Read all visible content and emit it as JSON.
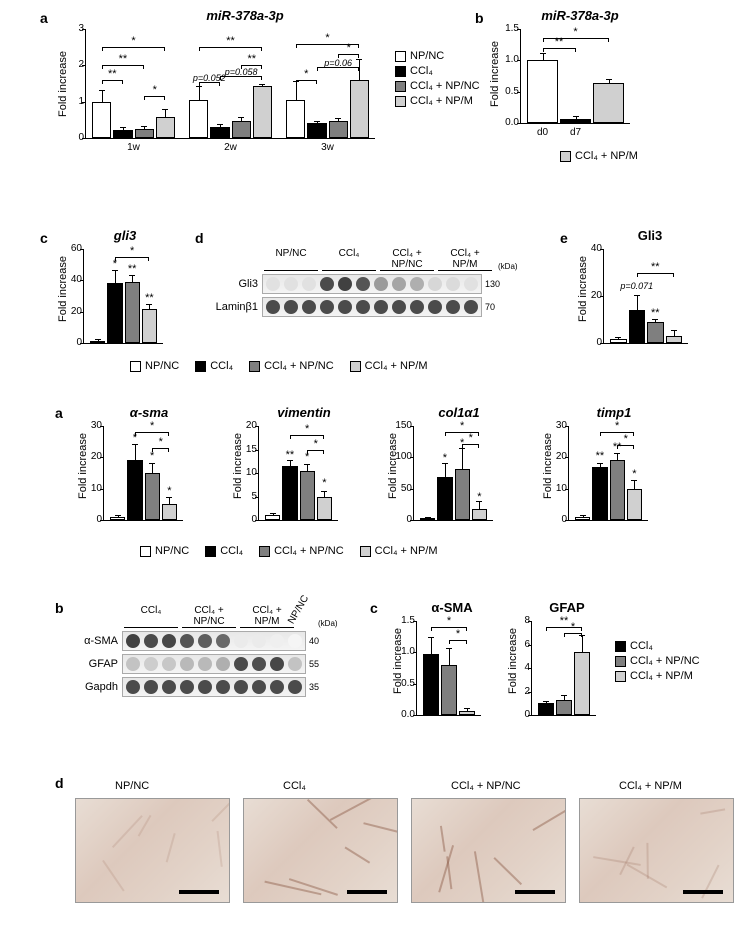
{
  "colors": {
    "npnc": "#ffffff",
    "ccl4": "#000000",
    "ccl4_npnc": "#7f7f7f",
    "ccl4_npm": "#d0d0d0",
    "border": "#000000",
    "bg": "#ffffff"
  },
  "legends": {
    "full": [
      {
        "key": "npnc",
        "label": "NP/NC"
      },
      {
        "key": "ccl4",
        "label": "CCl₄"
      },
      {
        "key": "ccl4_npnc",
        "label": "CCl₄ + NP/NC"
      },
      {
        "key": "ccl4_npm",
        "label": "CCl₄ + NP/M"
      }
    ],
    "panel_b_top": [
      {
        "key": "ccl4_npm",
        "label": "CCl₄ + NP/M"
      }
    ],
    "panel_c_bot": [
      {
        "key": "ccl4",
        "label": "CCl₄"
      },
      {
        "key": "ccl4_npnc",
        "label": "CCl₄ + NP/NC"
      },
      {
        "key": "ccl4_npm",
        "label": "CCl₄ + NP/M"
      }
    ]
  },
  "top": {
    "a": {
      "label": "a",
      "title": "miR-378a-3p",
      "ylabel": "Fold increase",
      "ylim": [
        0,
        3
      ],
      "ytick_step": 1,
      "groups": [
        "1w",
        "2w",
        "3w"
      ],
      "series": [
        "npnc",
        "ccl4",
        "ccl4_npnc",
        "ccl4_npm"
      ],
      "values": [
        [
          1.0,
          0.22,
          0.25,
          0.58
        ],
        [
          1.05,
          0.3,
          0.47,
          1.42
        ],
        [
          1.05,
          0.4,
          0.48,
          1.6
        ]
      ],
      "errors": [
        [
          0.3,
          0.05,
          0.05,
          0.18
        ],
        [
          0.35,
          0.05,
          0.08,
          0.05
        ],
        [
          0.5,
          0.05,
          0.03,
          0.55
        ]
      ],
      "sig": [
        {
          "g": 0,
          "from": 0,
          "to": 3,
          "y": 2.5,
          "t": "*"
        },
        {
          "g": 0,
          "from": 0,
          "to": 2,
          "y": 2.0,
          "t": "**"
        },
        {
          "g": 0,
          "from": 0,
          "to": 1,
          "y": 1.6,
          "t": "**"
        },
        {
          "g": 0,
          "from": 2,
          "to": 3,
          "y": 1.15,
          "t": "*"
        },
        {
          "g": 1,
          "from": 0,
          "to": 3,
          "y": 2.5,
          "t": "**"
        },
        {
          "g": 1,
          "from": 2,
          "to": 3,
          "y": 2.0,
          "t": "**"
        },
        {
          "g": 1,
          "from": 1,
          "to": 3,
          "y": 1.7,
          "t": "p=0.058",
          "p": true
        },
        {
          "g": 1,
          "from": 0,
          "to": 1,
          "y": 1.55,
          "t": "p=0.052",
          "p": true,
          "below": true
        },
        {
          "g": 2,
          "from": 0,
          "to": 3,
          "y": 2.6,
          "t": "*"
        },
        {
          "g": 2,
          "from": 2,
          "to": 3,
          "y": 2.3,
          "t": "*"
        },
        {
          "g": 2,
          "from": 1,
          "to": 3,
          "y": 1.95,
          "t": "p=0.06",
          "p": true
        },
        {
          "g": 2,
          "from": 0,
          "to": 1,
          "y": 1.6,
          "t": "*",
          "below": true
        }
      ]
    },
    "b": {
      "label": "b",
      "title": "miR-378a-3p",
      "ylabel": "Fold increase",
      "ylim": [
        0,
        1.5
      ],
      "ytick_step": 0.5,
      "categories": [
        "d0",
        "d7"
      ],
      "values": [
        1.0,
        0.07,
        0.64
      ],
      "errors": [
        0.1,
        0.02,
        0.04
      ],
      "bar_colors": [
        "npnc",
        "ccl4",
        "ccl4_npm"
      ],
      "sig": [
        {
          "from": 0,
          "to": 2,
          "y": 1.35,
          "t": "*"
        },
        {
          "from": 0,
          "to": 1,
          "y": 1.2,
          "t": "**"
        }
      ]
    },
    "c": {
      "label": "c",
      "title": "gli3",
      "ylabel": "Fold increase",
      "ylim": [
        0,
        60
      ],
      "ytick_step": 20,
      "series": [
        "npnc",
        "ccl4",
        "ccl4_npnc",
        "ccl4_npm"
      ],
      "values": [
        1.5,
        38,
        39,
        22
      ],
      "errors": [
        0.5,
        8,
        4,
        2
      ],
      "sig": [
        {
          "from": 1,
          "to": 3,
          "y": 55,
          "t": "*"
        },
        {
          "star_only": true,
          "at": 1,
          "y": 48,
          "t": "*"
        },
        {
          "star_only": true,
          "at": 2,
          "y": 45,
          "t": "**"
        },
        {
          "star_only": true,
          "at": 3,
          "y": 26,
          "t": "**"
        }
      ]
    },
    "d": {
      "label": "d",
      "lanes": [
        "NP/NC",
        "CCl₄",
        "CCl₄ + NP/NC",
        "CCl₄ + NP/M"
      ],
      "rows": [
        {
          "name": "Gli3",
          "mw": "130",
          "intensity": [
            0.15,
            0.15,
            0.15,
            0.9,
            0.95,
            0.85,
            0.5,
            0.45,
            0.4,
            0.2,
            0.18,
            0.15
          ]
        },
        {
          "name": "Laminβ1",
          "mw": "70",
          "intensity": [
            0.9,
            0.9,
            0.9,
            0.9,
            0.9,
            0.9,
            0.9,
            0.9,
            0.9,
            0.9,
            0.9,
            0.9
          ]
        }
      ],
      "kda_label": "(kDa)"
    },
    "e": {
      "label": "e",
      "title": "Gli3",
      "ylabel": "Fold increase",
      "ylim": [
        0,
        40
      ],
      "ytick_step": 20,
      "series": [
        "npnc",
        "ccl4",
        "ccl4_npnc",
        "ccl4_npm"
      ],
      "values": [
        1.5,
        14,
        9,
        3
      ],
      "errors": [
        0.5,
        6,
        1,
        2
      ],
      "sig": [
        {
          "from": 1,
          "to": 3,
          "y": 30,
          "t": "**"
        },
        {
          "star_only": true,
          "at": 1,
          "y": 22,
          "t": "p=0.071",
          "p": true
        },
        {
          "star_only": true,
          "at": 2,
          "y": 11,
          "t": "**"
        }
      ]
    }
  },
  "mid": {
    "a": {
      "label": "a",
      "ylabel": "Fold increase",
      "charts": [
        {
          "title": "α-sma",
          "ylim": [
            0,
            30
          ],
          "ytick": 10,
          "values": [
            1,
            19,
            15,
            5
          ],
          "errors": [
            0.3,
            5,
            3,
            2
          ],
          "sig": [
            {
              "from": 1,
              "to": 3,
              "y": 28,
              "t": "*"
            },
            {
              "from": 2,
              "to": 3,
              "y": 23,
              "t": "*"
            },
            {
              "star_only": true,
              "at": 1,
              "y": 25,
              "t": "*"
            },
            {
              "star_only": true,
              "at": 2,
              "y": 19,
              "t": "*"
            },
            {
              "star_only": true,
              "at": 3,
              "y": 8,
              "t": "*"
            }
          ]
        },
        {
          "title": "vimentin",
          "ylim": [
            0,
            20
          ],
          "ytick": 5,
          "values": [
            1,
            11.5,
            10.5,
            5
          ],
          "errors": [
            0.2,
            1,
            1.2,
            1
          ],
          "sig": [
            {
              "from": 1,
              "to": 3,
              "y": 18,
              "t": "*"
            },
            {
              "from": 2,
              "to": 3,
              "y": 15,
              "t": "*"
            },
            {
              "star_only": true,
              "at": 1,
              "y": 13,
              "t": "**"
            },
            {
              "star_only": true,
              "at": 2,
              "y": 12.5,
              "t": "*"
            },
            {
              "star_only": true,
              "at": 3,
              "y": 7,
              "t": "*"
            }
          ]
        },
        {
          "title": "col1α1",
          "ylim": [
            0,
            150
          ],
          "ytick": 50,
          "values": [
            2,
            68,
            82,
            18
          ],
          "errors": [
            1,
            22,
            32,
            10
          ],
          "sig": [
            {
              "from": 1,
              "to": 3,
              "y": 140,
              "t": "*"
            },
            {
              "from": 2,
              "to": 3,
              "y": 122,
              "t": "*"
            },
            {
              "star_only": true,
              "at": 1,
              "y": 92,
              "t": "*"
            },
            {
              "star_only": true,
              "at": 2,
              "y": 116,
              "t": "*"
            },
            {
              "star_only": true,
              "at": 3,
              "y": 30,
              "t": "*"
            }
          ]
        },
        {
          "title": "timp1",
          "ylim": [
            0,
            30
          ],
          "ytick": 10,
          "values": [
            1,
            17,
            19,
            10
          ],
          "errors": [
            0.3,
            1,
            2,
            2.5
          ],
          "sig": [
            {
              "from": 1,
              "to": 3,
              "y": 28,
              "t": "*"
            },
            {
              "from": 2,
              "to": 3,
              "y": 24,
              "t": "*"
            },
            {
              "star_only": true,
              "at": 1,
              "y": 19,
              "t": "**"
            },
            {
              "star_only": true,
              "at": 2,
              "y": 22,
              "t": "**"
            },
            {
              "star_only": true,
              "at": 3,
              "y": 13.5,
              "t": "*"
            }
          ]
        }
      ]
    },
    "b": {
      "label": "b",
      "lanes": [
        "CCl₄",
        "CCl₄ + NP/NC",
        "CCl₄ + NP/M",
        "NP/NC"
      ],
      "rows": [
        {
          "name": "α-SMA",
          "mw": "40",
          "intensity": [
            0.95,
            0.9,
            0.92,
            0.85,
            0.8,
            0.75,
            0.1,
            0.1,
            0.08,
            0.05
          ]
        },
        {
          "name": "GFAP",
          "mw": "55",
          "intensity": [
            0.3,
            0.25,
            0.28,
            0.35,
            0.35,
            0.4,
            0.9,
            0.88,
            0.92,
            0.3
          ]
        },
        {
          "name": "Gapdh",
          "mw": "35",
          "intensity": [
            0.9,
            0.9,
            0.9,
            0.9,
            0.9,
            0.9,
            0.9,
            0.9,
            0.9,
            0.9
          ]
        }
      ],
      "kda_label": "(kDa)"
    },
    "c": {
      "label": "c",
      "ylabel": "Fold increase",
      "charts": [
        {
          "title": "α-SMA",
          "ylim": [
            0,
            1.5
          ],
          "ytick": 0.5,
          "values": [
            0.98,
            0.8,
            0.07
          ],
          "errors": [
            0.25,
            0.25,
            0.03
          ],
          "sig": [
            {
              "from": 0,
              "to": 2,
              "y": 1.4,
              "t": "*"
            },
            {
              "from": 1,
              "to": 2,
              "y": 1.2,
              "t": "*"
            }
          ]
        },
        {
          "title": "GFAP",
          "ylim": [
            0,
            8
          ],
          "ytick": 2,
          "values": [
            1.0,
            1.3,
            5.4
          ],
          "errors": [
            0.1,
            0.3,
            1.3
          ],
          "sig": [
            {
              "from": 0,
              "to": 2,
              "y": 7.5,
              "t": "**"
            },
            {
              "from": 1,
              "to": 2,
              "y": 7.0,
              "t": "*"
            }
          ]
        }
      ],
      "series": [
        "ccl4",
        "ccl4_npnc",
        "ccl4_npm"
      ]
    },
    "d": {
      "label": "d",
      "images": [
        "NP/NC",
        "CCl₄",
        "CCl₄ + NP/NC",
        "CCl₄ + NP/M"
      ]
    }
  }
}
